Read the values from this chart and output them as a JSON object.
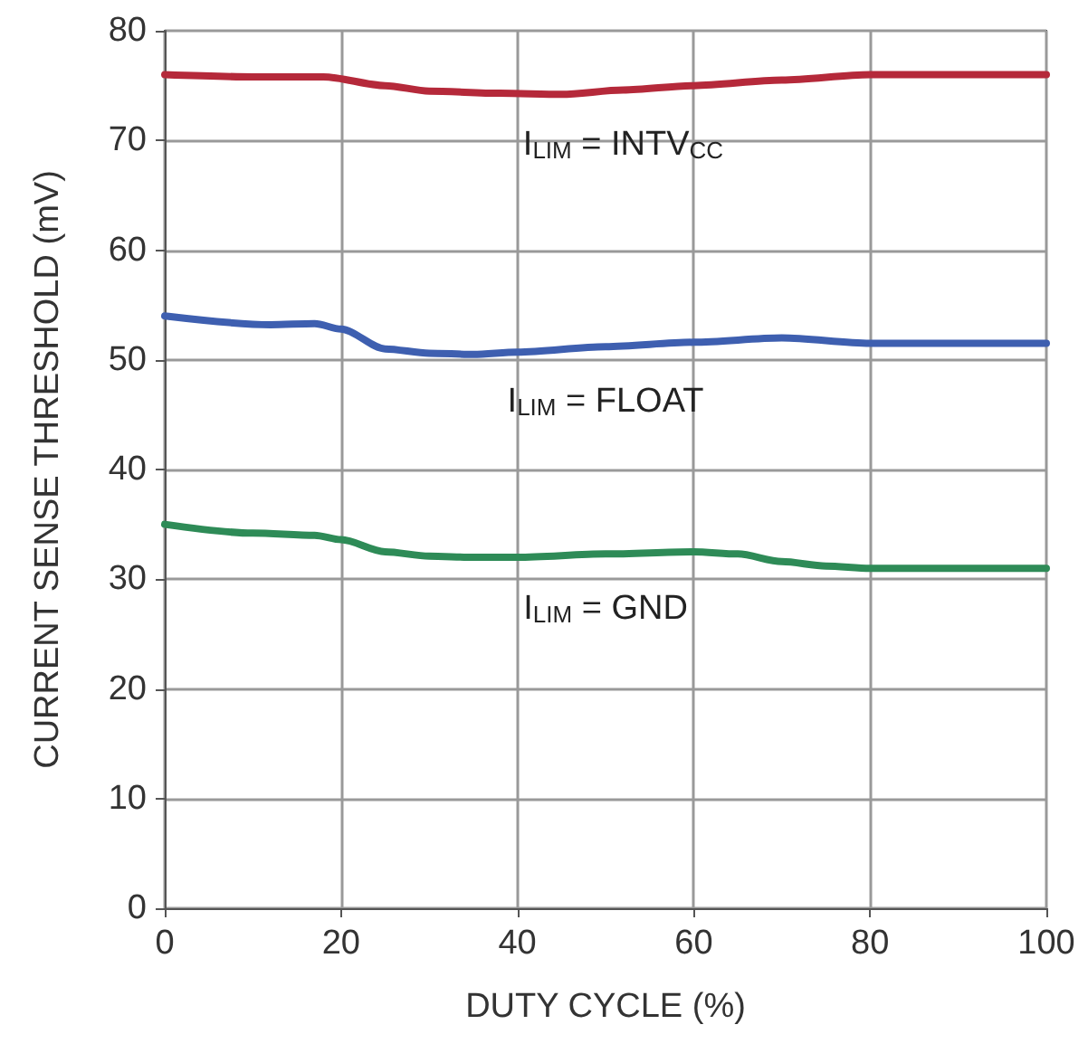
{
  "chart_data": {
    "type": "line",
    "xlabel": "DUTY CYCLE (%)",
    "ylabel": "CURRENT SENSE THRESHOLD (mV)",
    "xlim": [
      0,
      100
    ],
    "xticks": [
      0,
      20,
      40,
      60,
      80,
      100
    ],
    "ylim": [
      0,
      80
    ],
    "yticks": [
      0,
      10,
      20,
      30,
      40,
      50,
      60,
      70,
      80
    ],
    "grid": true,
    "legend": false,
    "marker": "none",
    "line_style": "solid",
    "series": [
      {
        "name": "I$_{LIM}$ = INTV$_{CC}$",
        "color": "#b5293a",
        "x": [
          0,
          10,
          18,
          25,
          30,
          38,
          45,
          52,
          60,
          70,
          80,
          90,
          100
        ],
        "values": [
          76,
          75.8,
          75.8,
          75,
          74.5,
          74.3,
          74.2,
          74.6,
          75,
          75.5,
          76,
          76,
          76
        ]
      },
      {
        "name": "I$_{LIM}$ = FLOAT",
        "color": "#3e5fb0",
        "x": [
          0,
          12,
          17,
          20,
          25,
          30,
          35,
          40,
          50,
          60,
          70,
          80,
          90,
          100
        ],
        "values": [
          54,
          53.2,
          53.3,
          52.8,
          51,
          50.6,
          50.5,
          50.7,
          51.2,
          51.6,
          52,
          51.5,
          51.5,
          51.5
        ]
      },
      {
        "name": "I$_{LIM}$ = GND",
        "color": "#2e8b57",
        "x": [
          0,
          10,
          17,
          20,
          25,
          30,
          35,
          40,
          50,
          60,
          65,
          70,
          75,
          80,
          90,
          100
        ],
        "values": [
          35,
          34.2,
          34,
          33.6,
          32.5,
          32.1,
          32,
          32,
          32.3,
          32.5,
          32.3,
          31.6,
          31.2,
          31,
          31,
          31
        ]
      }
    ]
  }
}
